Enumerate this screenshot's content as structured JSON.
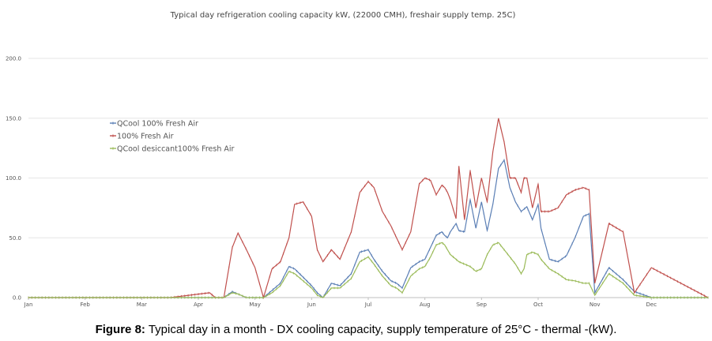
{
  "caption": {
    "label": "Figure 8:",
    "text": "Typical day in a month - DX cooling capacity, supply temperature of 25°C - thermal -(kW)."
  },
  "chart_data": {
    "type": "line",
    "title": "Typical day refrigeration cooling capacity kW, (22000 CMH), freshair supply temp. 25C)",
    "xlabel": "",
    "ylabel": "",
    "ylim": [
      0,
      200
    ],
    "yticks": [
      "0.0",
      "50.0",
      "100.0",
      "150.0",
      "200.0"
    ],
    "grid": true,
    "legend_position": "upper-left",
    "categories": [
      "Jan",
      "Feb",
      "Mar",
      "Apr",
      "May",
      "Jun",
      "Jul",
      "Aug",
      "Sep",
      "Oct",
      "Nov",
      "Dec"
    ],
    "x": [
      0,
      2.5,
      3.2,
      3.3,
      3.45,
      3.6,
      3.7,
      3.85,
      4,
      4.15,
      4.3,
      4.45,
      4.6,
      4.7,
      4.85,
      5,
      5.1,
      5.2,
      5.35,
      5.5,
      5.7,
      5.85,
      6,
      6.1,
      6.25,
      6.4,
      6.5,
      6.6,
      6.75,
      6.9,
      7,
      7.1,
      7.2,
      7.3,
      7.35,
      7.4,
      7.45,
      7.55,
      7.6,
      7.7,
      7.8,
      7.9,
      8,
      8.1,
      8.2,
      8.3,
      8.4,
      8.5,
      8.6,
      8.7,
      8.75,
      8.8,
      8.9,
      9,
      9.05,
      9.2,
      9.35,
      9.5,
      9.65,
      9.8,
      9.9,
      10,
      10.25,
      10.5,
      10.7,
      11,
      12
    ],
    "series": [
      {
        "name": "QCool 100% Fresh Air",
        "color": "#5b7fb5",
        "values": [
          0,
          0,
          0,
          0,
          0,
          5,
          3,
          0,
          0,
          0,
          6,
          12,
          26,
          24,
          17,
          10,
          4,
          0,
          12,
          10,
          20,
          38,
          40,
          32,
          22,
          14,
          12,
          8,
          25,
          30,
          32,
          42,
          52,
          55,
          52,
          50,
          55,
          62,
          56,
          55,
          82,
          58,
          80,
          56,
          78,
          108,
          115,
          92,
          80,
          72,
          74,
          76,
          65,
          78,
          58,
          32,
          30,
          35,
          50,
          68,
          70,
          4,
          25,
          15,
          5,
          0,
          0
        ]
      },
      {
        "name": "100% Fresh Air",
        "color": "#c0504d",
        "values": [
          0,
          0,
          4,
          0,
          0,
          42,
          54,
          40,
          25,
          0,
          24,
          30,
          50,
          78,
          80,
          68,
          40,
          30,
          40,
          32,
          55,
          88,
          97,
          92,
          72,
          60,
          50,
          40,
          55,
          95,
          100,
          98,
          86,
          94,
          92,
          88,
          82,
          66,
          110,
          65,
          106,
          75,
          100,
          80,
          122,
          150,
          130,
          100,
          100,
          88,
          100,
          100,
          75,
          95,
          72,
          72,
          75,
          86,
          90,
          92,
          90,
          12,
          62,
          55,
          4,
          25,
          0
        ]
      },
      {
        "name": "QCool desiccant100% Fresh Air",
        "color": "#9bbb59",
        "values": [
          0,
          0,
          0,
          0,
          0,
          4,
          3,
          0,
          0,
          0,
          4,
          10,
          22,
          20,
          14,
          8,
          2,
          0,
          8,
          8,
          16,
          30,
          34,
          28,
          18,
          10,
          8,
          4,
          18,
          24,
          26,
          34,
          44,
          46,
          44,
          40,
          36,
          32,
          30,
          28,
          26,
          22,
          24,
          36,
          44,
          46,
          40,
          34,
          28,
          20,
          24,
          36,
          38,
          36,
          32,
          24,
          20,
          15,
          14,
          12,
          12,
          2,
          20,
          12,
          2,
          0,
          0
        ]
      }
    ]
  }
}
